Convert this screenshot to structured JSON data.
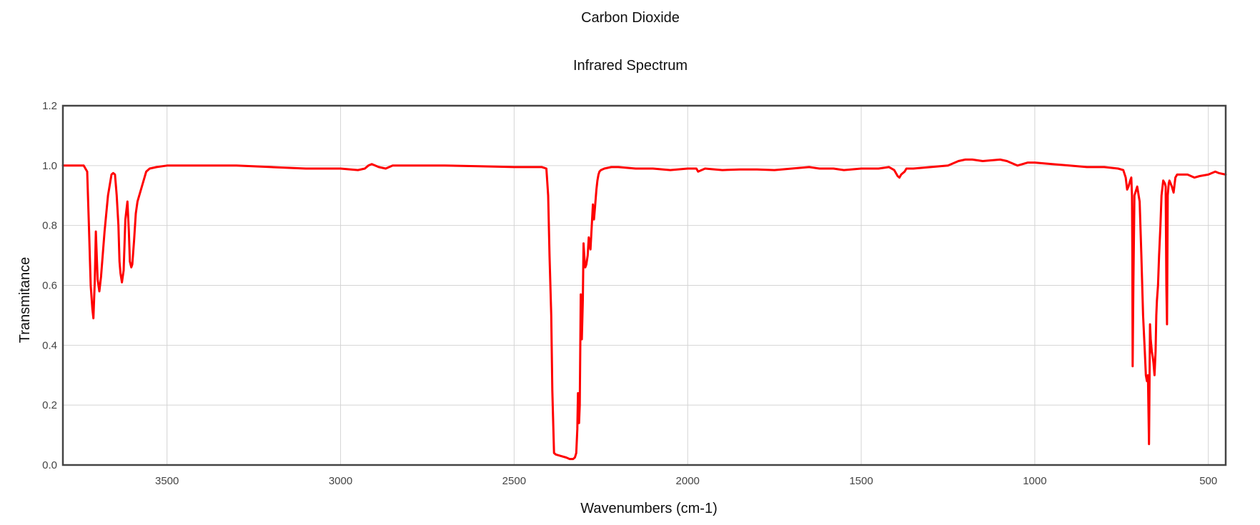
{
  "chart_data": {
    "type": "line",
    "title": "Carbon Dioxide",
    "subtitle": "Infrared Spectrum",
    "xlabel": "Wavenumbers (cm-1)",
    "ylabel": "Transmitance",
    "xlim": [
      3800,
      450
    ],
    "ylim": [
      0,
      1.2
    ],
    "x_reversed": true,
    "x_ticks": [
      3500,
      3000,
      2500,
      2000,
      1500,
      1000,
      500
    ],
    "y_ticks": [
      0.0,
      0.2,
      0.4,
      0.6,
      0.8,
      1.0,
      1.2
    ],
    "y_tick_labels": [
      "0.0",
      "0.2",
      "0.4",
      "0.6",
      "0.8",
      "1.0",
      "1.2"
    ],
    "grid": true,
    "series": [
      {
        "color": "#ff0000",
        "x": [
          3800,
          3740,
          3730,
          3725,
          3720,
          3715,
          3712,
          3708,
          3705,
          3700,
          3695,
          3690,
          3680,
          3670,
          3660,
          3655,
          3650,
          3645,
          3640,
          3637,
          3634,
          3630,
          3625,
          3620,
          3614,
          3610,
          3607,
          3603,
          3600,
          3595,
          3590,
          3585,
          3580,
          3570,
          3560,
          3550,
          3530,
          3500,
          3450,
          3300,
          3200,
          3100,
          3000,
          2950,
          2930,
          2920,
          2910,
          2890,
          2870,
          2860,
          2850,
          2800,
          2700,
          2600,
          2500,
          2450,
          2420,
          2407,
          2402,
          2398,
          2393,
          2390,
          2385,
          2380,
          2365,
          2350,
          2340,
          2330,
          2325,
          2321,
          2318,
          2316,
          2313,
          2311,
          2308,
          2305,
          2302,
          2300,
          2297,
          2295,
          2292,
          2288,
          2285,
          2280,
          2273,
          2270,
          2267,
          2263,
          2260,
          2257,
          2254,
          2250,
          2240,
          2220,
          2200,
          2150,
          2100,
          2050,
          2000,
          1975,
          1970,
          1950,
          1900,
          1850,
          1800,
          1750,
          1700,
          1650,
          1620,
          1580,
          1550,
          1500,
          1450,
          1420,
          1405,
          1395,
          1390,
          1385,
          1375,
          1370,
          1350,
          1300,
          1250,
          1220,
          1200,
          1180,
          1150,
          1100,
          1080,
          1070,
          1050,
          1020,
          1000,
          950,
          900,
          850,
          800,
          760,
          745,
          738,
          734,
          730,
          725,
          722,
          720,
          719,
          718,
          716,
          713,
          705,
          698,
          693,
          688,
          683,
          680,
          677,
          674,
          671,
          668,
          666,
          663,
          660,
          658,
          655,
          652,
          650,
          648,
          645,
          642,
          638,
          635,
          630,
          625,
          623,
          621,
          619,
          617,
          614,
          612,
          605,
          600,
          595,
          590,
          560,
          540,
          525,
          500,
          480,
          470,
          450
        ],
        "y": [
          1.0,
          1.0,
          0.98,
          0.8,
          0.6,
          0.52,
          0.49,
          0.62,
          0.78,
          0.62,
          0.58,
          0.63,
          0.78,
          0.9,
          0.97,
          0.975,
          0.97,
          0.9,
          0.8,
          0.68,
          0.64,
          0.61,
          0.65,
          0.82,
          0.88,
          0.78,
          0.68,
          0.66,
          0.67,
          0.75,
          0.84,
          0.88,
          0.9,
          0.94,
          0.98,
          0.99,
          0.995,
          1.0,
          1.0,
          1.0,
          0.995,
          0.99,
          0.99,
          0.985,
          0.99,
          1.0,
          1.005,
          0.995,
          0.99,
          0.995,
          1.0,
          1.0,
          1.0,
          0.998,
          0.995,
          0.995,
          0.995,
          0.99,
          0.9,
          0.7,
          0.5,
          0.25,
          0.04,
          0.035,
          0.03,
          0.025,
          0.02,
          0.02,
          0.025,
          0.04,
          0.12,
          0.24,
          0.14,
          0.2,
          0.57,
          0.42,
          0.55,
          0.74,
          0.68,
          0.66,
          0.67,
          0.7,
          0.76,
          0.72,
          0.87,
          0.82,
          0.86,
          0.92,
          0.95,
          0.97,
          0.98,
          0.985,
          0.99,
          0.995,
          0.995,
          0.99,
          0.99,
          0.985,
          0.99,
          0.99,
          0.98,
          0.99,
          0.985,
          0.987,
          0.987,
          0.985,
          0.99,
          0.995,
          0.99,
          0.99,
          0.985,
          0.99,
          0.99,
          0.995,
          0.985,
          0.965,
          0.96,
          0.97,
          0.98,
          0.99,
          0.99,
          0.995,
          1.0,
          1.015,
          1.02,
          1.02,
          1.015,
          1.02,
          1.015,
          1.01,
          1.0,
          1.01,
          1.01,
          1.005,
          1.0,
          0.995,
          0.995,
          0.99,
          0.985,
          0.96,
          0.92,
          0.93,
          0.95,
          0.96,
          0.9,
          0.7,
          0.33,
          0.6,
          0.9,
          0.93,
          0.88,
          0.7,
          0.5,
          0.38,
          0.3,
          0.28,
          0.3,
          0.07,
          0.47,
          0.42,
          0.38,
          0.36,
          0.34,
          0.3,
          0.38,
          0.5,
          0.55,
          0.6,
          0.7,
          0.8,
          0.9,
          0.95,
          0.94,
          0.93,
          0.6,
          0.47,
          0.9,
          0.94,
          0.95,
          0.93,
          0.91,
          0.96,
          0.97,
          0.97,
          0.96,
          0.965,
          0.97,
          0.98,
          0.975,
          0.97
        ]
      }
    ]
  }
}
